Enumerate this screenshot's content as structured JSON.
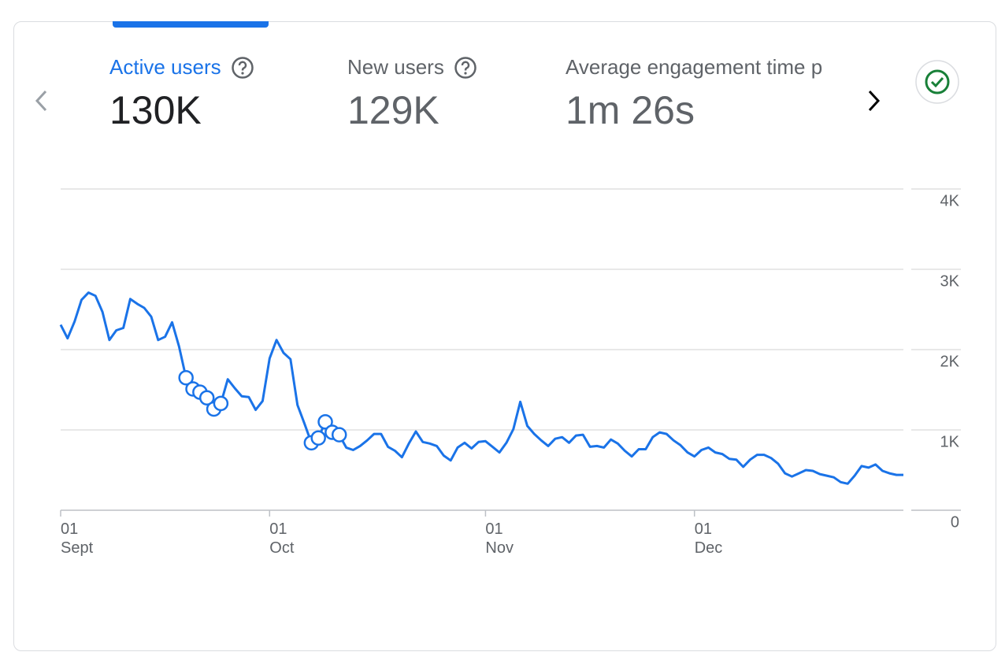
{
  "tabs": [
    {
      "label": "Active users",
      "value": "130K"
    },
    {
      "label": "New users",
      "value": "129K"
    },
    {
      "label": "Average engagement time p",
      "value": "1m 26s"
    }
  ],
  "chart_data": {
    "type": "line",
    "categories": [
      "01 Sept",
      null,
      null,
      null,
      null,
      null,
      null,
      null,
      null,
      null,
      null,
      null,
      null,
      null,
      null,
      null,
      null,
      null,
      null,
      null,
      null,
      null,
      null,
      null,
      null,
      null,
      null,
      null,
      null,
      null,
      "01 Oct",
      null,
      null,
      null,
      null,
      null,
      null,
      null,
      null,
      null,
      null,
      null,
      null,
      null,
      null,
      null,
      null,
      null,
      null,
      null,
      null,
      null,
      null,
      null,
      null,
      null,
      null,
      null,
      null,
      null,
      null,
      "01 Nov",
      null,
      null,
      null,
      null,
      null,
      null,
      null,
      null,
      null,
      null,
      null,
      null,
      null,
      null,
      null,
      null,
      null,
      null,
      null,
      null,
      null,
      null,
      null,
      null,
      null,
      null,
      null,
      null,
      null,
      "01 Dec",
      null,
      null,
      null,
      null,
      null,
      null,
      null,
      null,
      null,
      null,
      null,
      null,
      null,
      null,
      null,
      null,
      null,
      null,
      null,
      null,
      null,
      null,
      null,
      null,
      null,
      null,
      null,
      null,
      null,
      null
    ],
    "series": [
      {
        "color": "#1a73e8",
        "values": [
          2310,
          2140,
          2350,
          2620,
          2710,
          2670,
          2470,
          2120,
          2240,
          2270,
          2630,
          2570,
          2520,
          2410,
          2120,
          2160,
          2340,
          2040,
          1650,
          1510,
          1470,
          1400,
          1260,
          1330,
          1630,
          1520,
          1420,
          1410,
          1250,
          1360,
          1890,
          2120,
          1960,
          1880,
          1310,
          1080,
          840,
          900,
          1100,
          970,
          940,
          780,
          750,
          800,
          870,
          950,
          950,
          790,
          740,
          660,
          830,
          980,
          850,
          830,
          800,
          680,
          620,
          780,
          840,
          770,
          850,
          860,
          790,
          720,
          840,
          1010,
          1350,
          1050,
          950,
          870,
          800,
          890,
          910,
          840,
          930,
          940,
          790,
          800,
          780,
          880,
          830,
          740,
          670,
          760,
          760,
          910,
          970,
          950,
          870,
          810,
          720,
          670,
          750,
          780,
          720,
          700,
          640,
          630,
          540,
          630,
          690,
          690,
          650,
          580,
          460,
          420,
          460,
          500,
          490,
          450,
          430,
          410,
          350,
          330,
          430,
          550,
          530,
          570,
          490,
          460,
          440,
          440
        ]
      }
    ],
    "highlighted": [
      18,
      19,
      20,
      21,
      22,
      23,
      36,
      37,
      38,
      39,
      40
    ],
    "ylim": [
      0,
      4000
    ],
    "yticks": [
      0,
      {
        "value": 1000,
        "label": "1K"
      },
      {
        "value": 2000,
        "label": "2K"
      },
      {
        "value": 3000,
        "label": "3K"
      },
      {
        "value": 4000,
        "label": "4K"
      }
    ],
    "grid": true
  }
}
